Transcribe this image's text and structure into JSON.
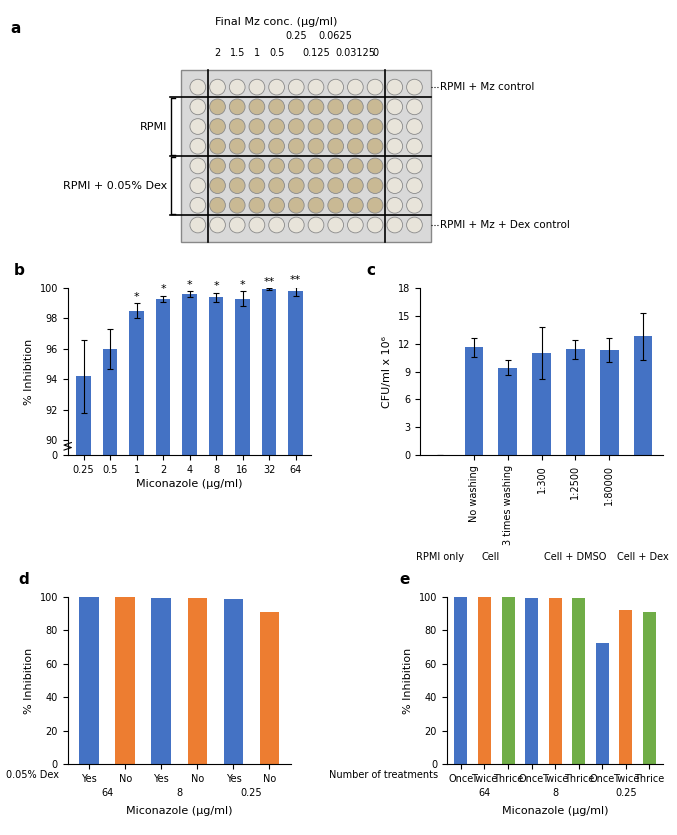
{
  "plate": {
    "title": "a",
    "header": "Final Mz conc. (μg/ml)",
    "concentrations": [
      "2",
      "1.5",
      "1",
      "0.5",
      "0.25",
      "0.125",
      "0.0625",
      "0.03125",
      "0"
    ],
    "row_labels": [
      "RPMI + Mz control",
      "RPMI",
      "RPMI + 0.05% Dex",
      "RPMI + Mz + Dex control"
    ]
  },
  "chart_data": [
    {
      "type": "bar",
      "title": "b",
      "x_label": "Miconazole (μg/ml)",
      "y_label": "% Inhibition",
      "categories": [
        "0.25",
        "0.5",
        "1",
        "2",
        "4",
        "8",
        "16",
        "32",
        "64"
      ],
      "values": [
        94.2,
        96.0,
        98.5,
        99.3,
        99.6,
        99.4,
        99.3,
        99.95,
        99.8
      ],
      "errors": [
        2.4,
        1.3,
        0.5,
        0.2,
        0.2,
        0.3,
        0.5,
        0.05,
        0.3
      ],
      "annotations": [
        null,
        null,
        "*",
        "*",
        "*",
        "*",
        "*",
        "**",
        "**"
      ],
      "color": "#4472c4",
      "ylim": [
        0,
        100
      ],
      "yticks": [
        0,
        90,
        92,
        94,
        96,
        98,
        100
      ]
    },
    {
      "type": "bar",
      "title": "c",
      "y_label": "CFU/ml x 10⁶",
      "categories": [
        null,
        "No washing",
        "3 times washing",
        "1:300",
        "1:2500",
        "1:80000",
        null
      ],
      "groups": [
        {
          "name": "RPMI only",
          "count": 1
        },
        {
          "name": "Cell",
          "count": 2
        },
        {
          "name": "Cell + DMSO",
          "count": 3
        },
        {
          "name": "Cell + Dex",
          "count": 1
        }
      ],
      "values": [
        0,
        11.6,
        9.4,
        11.0,
        11.4,
        11.3,
        12.8
      ],
      "errors": [
        0,
        1.0,
        0.8,
        2.8,
        1.0,
        1.3,
        2.5
      ],
      "color": "#4472c4",
      "ylim": [
        0,
        18
      ],
      "yticks": [
        0,
        3,
        6,
        9,
        12,
        15,
        18
      ]
    },
    {
      "type": "bar",
      "title": "d",
      "x_label": "Miconazole (μg/ml)",
      "y_label": "% Inhibition",
      "row_label": "0.05% Dex",
      "categories": [
        "Yes",
        "No",
        "Yes",
        "No",
        "Yes",
        "No"
      ],
      "groups": [
        {
          "name": "64",
          "count": 2
        },
        {
          "name": "8",
          "count": 2
        },
        {
          "name": "0.25",
          "count": 2
        }
      ],
      "values": [
        100,
        100,
        99.5,
        99.2,
        99.0,
        91.0
      ],
      "colors": [
        "#4472c4",
        "#ed7d31",
        "#4472c4",
        "#ed7d31",
        "#4472c4",
        "#ed7d31"
      ],
      "ylim": [
        0,
        100
      ],
      "yticks": [
        0,
        20,
        40,
        60,
        80,
        100
      ]
    },
    {
      "type": "bar",
      "title": "e",
      "x_label": "Miconazole (μg/ml)",
      "y_label": "% Inhibition",
      "row_label": "Number of treatments",
      "categories": [
        "Once",
        "Twice",
        "Thrice",
        "Once",
        "Twice",
        "Thrice",
        "Once",
        "Twice",
        "Thrice"
      ],
      "groups": [
        {
          "name": "64",
          "count": 3
        },
        {
          "name": "8",
          "count": 3
        },
        {
          "name": "0.25",
          "count": 3
        }
      ],
      "values": [
        100,
        100,
        100,
        99.2,
        99.3,
        99.2,
        72.5,
        92.5,
        91.0
      ],
      "colors": [
        "#4472c4",
        "#ed7d31",
        "#70ad47",
        "#4472c4",
        "#ed7d31",
        "#70ad47",
        "#4472c4",
        "#ed7d31",
        "#70ad47"
      ],
      "ylim": [
        0,
        100
      ],
      "yticks": [
        0,
        20,
        40,
        60,
        80,
        100
      ]
    }
  ]
}
